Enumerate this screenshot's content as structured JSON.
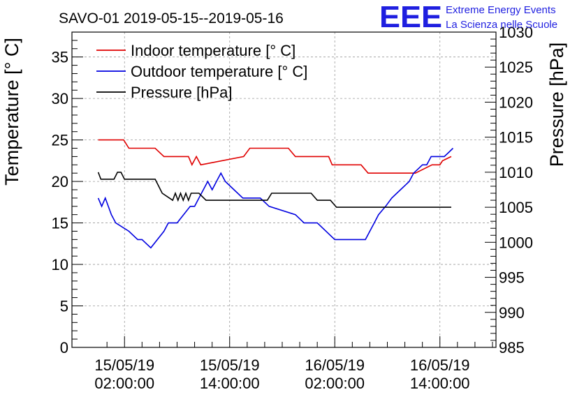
{
  "chart_data": {
    "type": "line",
    "title": "SAVO-01 2019-05-15--2019-05-16",
    "logo": {
      "mark": "EEE",
      "line1": "Extreme Energy Events",
      "line2": "La Scienza nelle Scuole",
      "color": "#1f1fe0"
    },
    "y_left": {
      "label": "Temperature [° C]",
      "range": [
        0,
        38
      ],
      "ticks": [
        0,
        5,
        10,
        15,
        20,
        25,
        30,
        35
      ]
    },
    "y_right": {
      "label": "Pressure [hPa]",
      "range": [
        985,
        1030
      ],
      "ticks": [
        985,
        990,
        995,
        1000,
        1005,
        1010,
        1015,
        1020,
        1025,
        1030
      ]
    },
    "x_axis": {
      "range": [
        -4.0,
        44.4
      ],
      "unit": "hours since 15/05/19 00:00:00",
      "ticks": [
        {
          "x": 2,
          "date": "15/05/19",
          "time": "02:00:00"
        },
        {
          "x": 14,
          "date": "15/05/19",
          "time": "14:00:00"
        },
        {
          "x": 26,
          "date": "16/05/19",
          "time": "02:00:00"
        },
        {
          "x": 38,
          "date": "16/05/19",
          "time": "14:00:00"
        }
      ]
    },
    "grid": true,
    "legend_position": "top-left",
    "series": [
      {
        "name": "Indoor temperature [° C]",
        "axis": "left",
        "color": "#e00000",
        "x": [
          -1.0,
          1.9,
          2.5,
          5.5,
          6.5,
          8.5,
          9.3,
          9.7,
          10.2,
          10.7,
          15.6,
          16.3,
          20.7,
          21.5,
          25.3,
          25.7,
          29.0,
          29.8,
          34.5,
          35.2,
          37.1,
          38.0,
          38.3,
          39.3
        ],
        "y": [
          25,
          25,
          24,
          24,
          23,
          23,
          23,
          22,
          23,
          22,
          23,
          24,
          24,
          23,
          23,
          22,
          22,
          21,
          21,
          21,
          22,
          22,
          22.5,
          23
        ]
      },
      {
        "name": "Outdoor temperature [° C]",
        "axis": "left",
        "color": "#0000e0",
        "x": [
          -1.0,
          -0.6,
          -0.2,
          0.5,
          1.0,
          2.5,
          3.5,
          4.0,
          5.0,
          6.5,
          7.0,
          8.0,
          9.5,
          10.0,
          10.5,
          11.0,
          11.5,
          12.0,
          12.5,
          13.0,
          13.5,
          14.5,
          15.5,
          17.5,
          18.5,
          21.5,
          22.5,
          24.0,
          26.0,
          29.5,
          30.5,
          31.0,
          31.8,
          32.5,
          33.5,
          34.0,
          34.5,
          35.0,
          35.5,
          36.0,
          36.5,
          37.0,
          38.5,
          39.0,
          39.5
        ],
        "y": [
          18,
          17,
          18,
          16,
          15,
          14,
          13,
          13,
          12,
          14,
          15,
          15,
          17,
          17,
          18,
          19,
          20,
          19,
          20,
          21,
          20,
          19,
          18,
          18,
          17,
          16,
          15,
          15,
          13,
          13,
          15,
          16,
          17,
          18,
          19,
          19.5,
          20,
          21,
          21.5,
          22,
          22,
          23,
          23,
          23.5,
          24
        ]
      },
      {
        "name": "Pressure [hPa]",
        "axis": "right",
        "color": "#000000",
        "x": [
          -1.0,
          -0.7,
          0.8,
          1.2,
          1.6,
          2.0,
          5.5,
          5.9,
          6.3,
          7.5,
          7.8,
          8.1,
          8.4,
          8.7,
          9.0,
          9.3,
          9.6,
          10.0,
          10.5,
          11.3,
          11.8,
          18.3,
          18.8,
          23.3,
          24.0,
          25.5,
          26.2,
          39.3
        ],
        "y": [
          1010,
          1009,
          1009,
          1010,
          1010,
          1009,
          1009,
          1008,
          1007,
          1006,
          1007,
          1006,
          1007,
          1006,
          1007,
          1006,
          1007,
          1007,
          1007,
          1006,
          1006,
          1006,
          1007,
          1007,
          1006,
          1006,
          1005,
          1005
        ]
      }
    ]
  }
}
